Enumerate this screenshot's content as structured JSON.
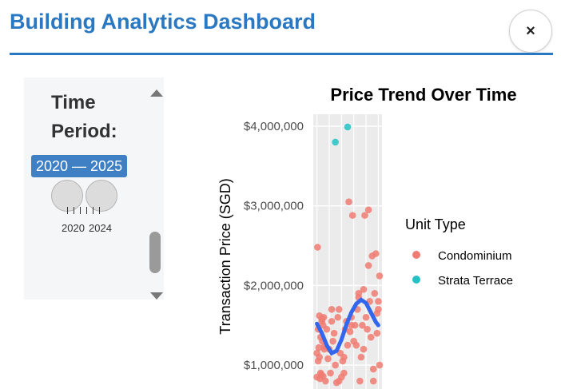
{
  "modal": {
    "title": "Building Analytics Dashboard",
    "close_label": "×"
  },
  "sidebar": {
    "filter_label": "Time Period:",
    "range_display": "2020 — 2025",
    "range_start": 2020,
    "range_end": 2025,
    "tick_labels": [
      "2020",
      "2024"
    ]
  },
  "colors": {
    "title": "#2a78c2",
    "condo": "#f07b72",
    "strata": "#22c2c4",
    "trend": "#3366ee"
  },
  "chart_data": {
    "type": "scatter",
    "title": "Price Trend Over Time",
    "xlabel": "",
    "ylabel": "Transaction Price (SGD)",
    "y_ticks": [
      1000000,
      2000000,
      3000000,
      4000000
    ],
    "y_tick_labels": [
      "$1,000,000",
      "$2,000,000",
      "$3,000,000",
      "$4,000,000"
    ],
    "xlim": [
      2019.7,
      2025.3
    ],
    "ylim": [
      700000,
      4150000
    ],
    "legend_title": "Unit Type",
    "legend_position": "right",
    "series": [
      {
        "name": "Condominium",
        "x": [
          2020.0,
          2020.1,
          2020.2,
          2020.3,
          2020.4,
          2020.5,
          2020.05,
          2020.15,
          2020.25,
          2020.35,
          2020.45,
          2020.55,
          2020.0,
          2020.2,
          2020.4,
          2020.5,
          2020.6,
          2020.7,
          2020.8,
          2020.9,
          2021.0,
          2021.1,
          2021.2,
          2021.3,
          2021.4,
          2021.5,
          2021.6,
          2021.7,
          2021.8,
          2021.9,
          2022.0,
          2022.1,
          2022.2,
          2022.3,
          2022.4,
          2022.5,
          2022.6,
          2022.7,
          2022.8,
          2022.9,
          2023.0,
          2023.1,
          2023.2,
          2023.3,
          2023.4,
          2023.5,
          2023.6,
          2023.7,
          2023.8,
          2023.9,
          2024.0,
          2024.1,
          2024.2,
          2024.3,
          2024.4,
          2024.5,
          2024.6,
          2024.7,
          2024.8,
          2024.9,
          2025.0,
          2025.1,
          2020.3,
          2020.6,
          2021.2,
          2021.8,
          2022.2,
          2022.8,
          2023.4,
          2023.8,
          2024.2,
          2024.6,
          2024.9,
          2025.0,
          2025.1,
          2020.1
        ],
        "y": [
          850000,
          1450000,
          1100000,
          900000,
          1550000,
          1500000,
          2480000,
          1220000,
          830000,
          880000,
          1300000,
          1600000,
          1150000,
          1620000,
          1580000,
          860000,
          1230000,
          800000,
          1450000,
          1080000,
          1200000,
          900000,
          1550000,
          1300000,
          1400000,
          1000000,
          780000,
          1600000,
          1700000,
          1150000,
          850000,
          1050000,
          900000,
          1450000,
          1550000,
          1250000,
          3050000,
          1420000,
          1600000,
          2880000,
          1300000,
          1500000,
          1250000,
          1700000,
          1850000,
          800000,
          1100000,
          1500000,
          1950000,
          2880000,
          1600000,
          1450000,
          2950000,
          1800000,
          1350000,
          2370000,
          950000,
          1900000,
          2400000,
          1650000,
          1700000,
          1000000,
          1350000,
          1200000,
          1700000,
          800000,
          1100000,
          1500000,
          1900000,
          1200000,
          2250000,
          800000,
          1400000,
          1800000,
          2120000,
          1050000
        ]
      },
      {
        "name": "Strata Terrace",
        "x": [
          2021.5,
          2022.5
        ],
        "y": [
          3800000,
          3990000
        ]
      }
    ],
    "trend": {
      "x": [
        2020.0,
        2020.4,
        2020.8,
        2021.2,
        2021.6,
        2022.0,
        2022.4,
        2022.8,
        2023.2,
        2023.6,
        2024.0,
        2024.4,
        2024.8,
        2025.0
      ],
      "y": [
        1520000,
        1400000,
        1250000,
        1150000,
        1180000,
        1320000,
        1510000,
        1660000,
        1770000,
        1820000,
        1780000,
        1660000,
        1540000,
        1500000
      ]
    }
  }
}
